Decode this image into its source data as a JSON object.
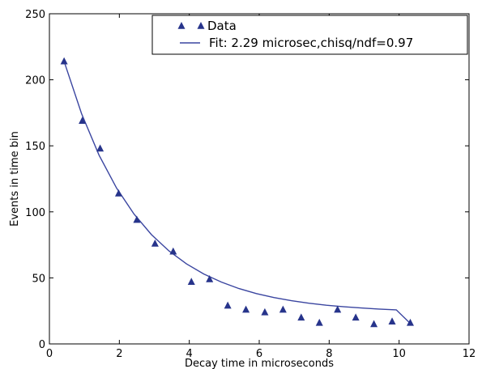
{
  "chart_data": {
    "type": "scatter",
    "title": "",
    "xlabel": "Decay time in microseconds",
    "ylabel": "Events in time bin",
    "xlim": [
      0,
      12
    ],
    "ylim": [
      0,
      250
    ],
    "x_ticks": [
      0,
      2,
      4,
      6,
      8,
      10,
      12
    ],
    "y_ticks": [
      0,
      50,
      100,
      150,
      200,
      250
    ],
    "grid": false,
    "legend_position": "top-right",
    "series": [
      {
        "name": "Data",
        "kind": "scatter",
        "marker": "triangle",
        "color": "#27348b",
        "x": [
          0.42,
          0.94,
          1.45,
          1.98,
          2.5,
          3.02,
          3.54,
          4.06,
          4.58,
          5.1,
          5.62,
          6.16,
          6.68,
          7.2,
          7.72,
          8.24,
          8.76,
          9.28,
          9.8,
          10.32
        ],
        "y": [
          214,
          169,
          148,
          114,
          94,
          76,
          70,
          47,
          49,
          29,
          26,
          24,
          26,
          20,
          16,
          26,
          20,
          15,
          17,
          16
        ]
      },
      {
        "name": "Fit: 2.29 microsec,chisq/ndf=0.97",
        "kind": "line",
        "color": "#3a45a0",
        "x": [
          0.42,
          0.92,
          1.42,
          1.92,
          2.42,
          2.92,
          3.42,
          3.92,
          4.42,
          4.92,
          5.42,
          5.92,
          6.42,
          6.92,
          7.42,
          7.92,
          8.42,
          8.92,
          9.42,
          9.92,
          10.32
        ],
        "y": [
          214.0,
          174.3,
          142.9,
          118.0,
          98.3,
          82.7,
          70.4,
          60.6,
          52.9,
          46.8,
          41.9,
          38.1,
          35.1,
          32.7,
          30.8,
          29.3,
          28.1,
          27.2,
          26.4,
          25.8,
          15.5
        ]
      }
    ]
  }
}
